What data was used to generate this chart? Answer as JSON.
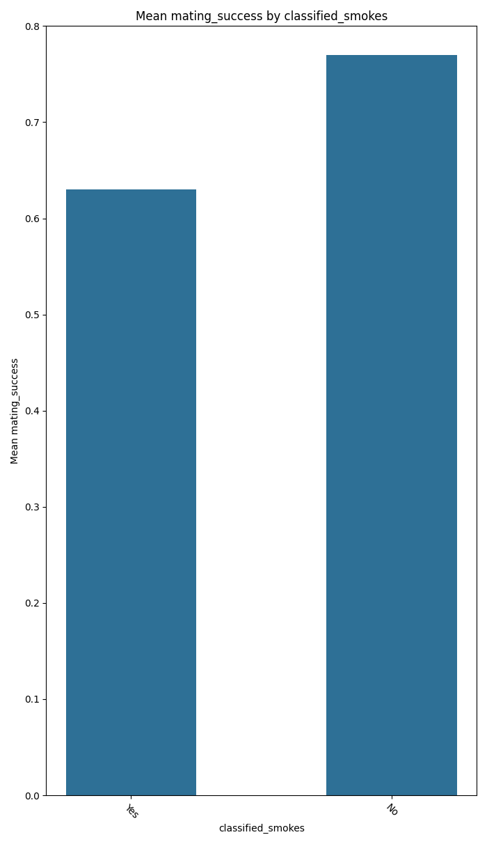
{
  "categories": [
    "Yes",
    "No"
  ],
  "values": [
    0.63,
    0.77
  ],
  "bar_color": "#2e7096",
  "title": "Mean mating_success by classified_smokes",
  "xlabel": "classified_smokes",
  "ylabel": "Mean mating_success",
  "ylim": [
    0.0,
    0.8
  ],
  "yticks": [
    0.0,
    0.1,
    0.2,
    0.3,
    0.4,
    0.5,
    0.6,
    0.7,
    0.8
  ],
  "figsize": [
    7.0,
    12.12
  ],
  "dpi": 100,
  "bar_width": 0.5
}
